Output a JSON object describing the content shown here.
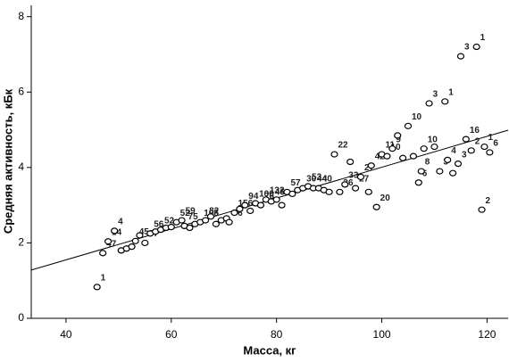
{
  "chart_data": {
    "type": "scatter",
    "x_label": "Масса, кг",
    "y_label": "Средняя активность, кБк",
    "xlim": [
      33.4,
      124
    ],
    "ylim": [
      0,
      8.3
    ],
    "xticks": [
      40,
      60,
      80,
      100,
      120
    ],
    "yticks": [
      0,
      2,
      4,
      6,
      8
    ],
    "marker_color": "#000000",
    "line_color": "#000000",
    "x": [
      45.9,
      47.0,
      48.0,
      49.2,
      50.5,
      51.5,
      52.5,
      53.2,
      54.0,
      55.0,
      56.0,
      57.0,
      58.0,
      59.0,
      60.0,
      61.0,
      62.0,
      62.5,
      63.5,
      64.5,
      65.5,
      66.5,
      67.5,
      68.5,
      69.5,
      70.5,
      71.0,
      72.0,
      73.0,
      74.0,
      75.0,
      76.0,
      77.0,
      78.0,
      79.0,
      80.0,
      81.0,
      82.0,
      83.0,
      84.0,
      85.0,
      86.0,
      87.0,
      88.0,
      89.0,
      90.0,
      91.0,
      92.0,
      93.0,
      94.0,
      95.0,
      96.0,
      97.5,
      98.0,
      99.0,
      100.0,
      101.0,
      102.0,
      103.0,
      104.0,
      105.0,
      106.0,
      107.0,
      107.5,
      108.0,
      109.0,
      110.0,
      111.0,
      112.0,
      112.5,
      113.5,
      114.5,
      115.0,
      116.0,
      117.0,
      118.0,
      119.0,
      120.5,
      119.5
    ],
    "y": [
      0.83,
      1.73,
      2.04,
      2.32,
      1.8,
      1.85,
      1.9,
      2.05,
      2.2,
      2.0,
      2.25,
      2.3,
      2.35,
      2.4,
      2.42,
      2.55,
      2.6,
      2.45,
      2.4,
      2.5,
      2.55,
      2.6,
      2.7,
      2.5,
      2.6,
      2.65,
      2.55,
      2.8,
      2.9,
      3.0,
      2.85,
      3.05,
      3.0,
      3.15,
      3.1,
      3.15,
      3.0,
      3.35,
      3.3,
      3.4,
      3.45,
      3.5,
      3.45,
      3.45,
      3.4,
      3.35,
      4.35,
      3.35,
      3.55,
      4.15,
      3.45,
      3.75,
      3.35,
      4.05,
      2.95,
      4.35,
      4.3,
      4.5,
      4.85,
      4.25,
      5.1,
      4.3,
      3.6,
      3.9,
      4.5,
      5.7,
      4.55,
      3.9,
      5.75,
      4.2,
      3.85,
      4.1,
      6.95,
      4.75,
      4.45,
      7.2,
      2.88,
      4.4,
      4.55
    ],
    "point_labels": [
      "1",
      "47",
      "14",
      "4",
      null,
      null,
      null,
      "45",
      null,
      "37",
      "56",
      null,
      "52",
      null,
      null,
      "52",
      "59",
      "75",
      null,
      null,
      "108",
      "82",
      null,
      null,
      null,
      null,
      "76",
      "156",
      null,
      "94",
      null,
      "100",
      "76",
      "132",
      "46",
      null,
      null,
      "57",
      null,
      null,
      "30",
      "53",
      "44",
      "40",
      null,
      null,
      "22",
      "36",
      "33",
      null,
      "27",
      "27",
      null,
      "42",
      "20",
      "11",
      "10",
      "9",
      null,
      null,
      "10",
      null,
      "6",
      "8",
      "10",
      "3",
      null,
      "3",
      "1",
      "4",
      null,
      "3",
      "3",
      "16",
      "2",
      "1",
      "2",
      "6",
      "1"
    ],
    "fit_line": {
      "x": [
        33.4,
        124
      ],
      "y": [
        1.28,
        4.99
      ]
    }
  }
}
